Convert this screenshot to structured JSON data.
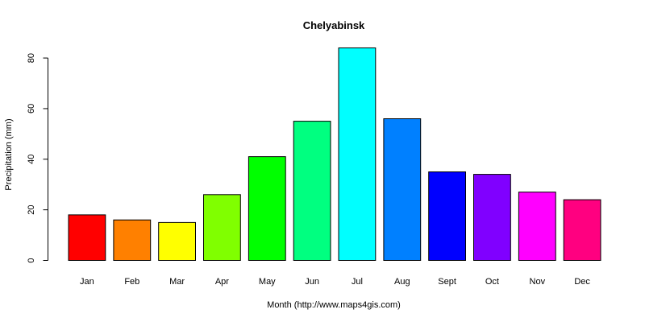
{
  "chart_data": {
    "type": "bar",
    "title": "Chelyabinsk",
    "xlabel": "Month (http://www.maps4gis.com)",
    "ylabel": "Precipitation (mm)",
    "categories": [
      "Jan",
      "Feb",
      "Mar",
      "Apr",
      "May",
      "Jun",
      "Jul",
      "Aug",
      "Sept",
      "Oct",
      "Nov",
      "Dec"
    ],
    "values": [
      18,
      16,
      15,
      26,
      41,
      55,
      84,
      56,
      35,
      34,
      27,
      24
    ],
    "colors": [
      "#FF0000",
      "#FF8000",
      "#FFFF00",
      "#80FF00",
      "#00FF00",
      "#00FF80",
      "#00FFFF",
      "#0080FF",
      "#0000FF",
      "#8000FF",
      "#FF00FF",
      "#FF0080"
    ],
    "ylim": [
      0,
      84
    ],
    "yticks": [
      0,
      20,
      40,
      60,
      80
    ],
    "grid": false,
    "legend": "none"
  }
}
